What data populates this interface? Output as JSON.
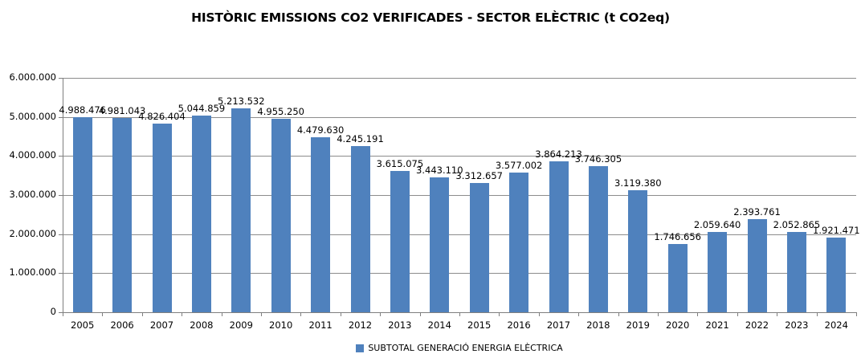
{
  "title": "HISTÒRIC EMISSIONS CO2 VERIFICADES - SECTOR ELÈCTRIC (t CO2eq)",
  "legend": {
    "label": "SUBTOTAL GENERACIÓ ENERGIA ELÈCTRICA",
    "marker_color": "#4F81BD"
  },
  "colors": {
    "bar": "#4F81BD",
    "gridline": "#8C8C8C",
    "axis": "#7F7F7F",
    "text": "#000000",
    "background": "#FFFFFF"
  },
  "chart_data": {
    "type": "bar",
    "title": "HISTÒRIC EMISSIONS CO2 VERIFICADES - SECTOR ELÈCTRIC (t CO2eq)",
    "categories": [
      "2005",
      "2006",
      "2007",
      "2008",
      "2009",
      "2010",
      "2011",
      "2012",
      "2013",
      "2014",
      "2015",
      "2016",
      "2017",
      "2018",
      "2019",
      "2020",
      "2021",
      "2022",
      "2023",
      "2024"
    ],
    "values": [
      4988476,
      4981043,
      4826404,
      5044859,
      5213532,
      4955250,
      4479630,
      4245191,
      3615075,
      3443110,
      3312657,
      3577002,
      3864213,
      3746305,
      3119380,
      1746656,
      2059640,
      2393761,
      2052865,
      1921471
    ],
    "data_labels": [
      "4.988.476",
      "4.981.043",
      "4.826.404",
      "5.044.859",
      "5.213.532",
      "4.955.250",
      "4.479.630",
      "4.245.191",
      "3.615.075",
      "3.443.110",
      "3.312.657",
      "3.577.002",
      "3.864.213",
      "3.746.305",
      "3.119.380",
      "1.746.656",
      "2.059.640",
      "2.393.761",
      "2.052.865",
      "1.921.471"
    ],
    "xlabel": "",
    "ylabel": "",
    "ylim": [
      0,
      6000000
    ],
    "ytick_interval": 1000000,
    "ytick_labels": [
      "0",
      "1.000.000",
      "2.000.000",
      "3.000.000",
      "4.000.000",
      "5.000.000",
      "6.000.000"
    ],
    "grid": true,
    "legend": [
      "SUBTOTAL GENERACIÓ ENERGIA ELÈCTRICA"
    ],
    "legend_position": "bottom",
    "bar_color": "#4F81BD"
  }
}
